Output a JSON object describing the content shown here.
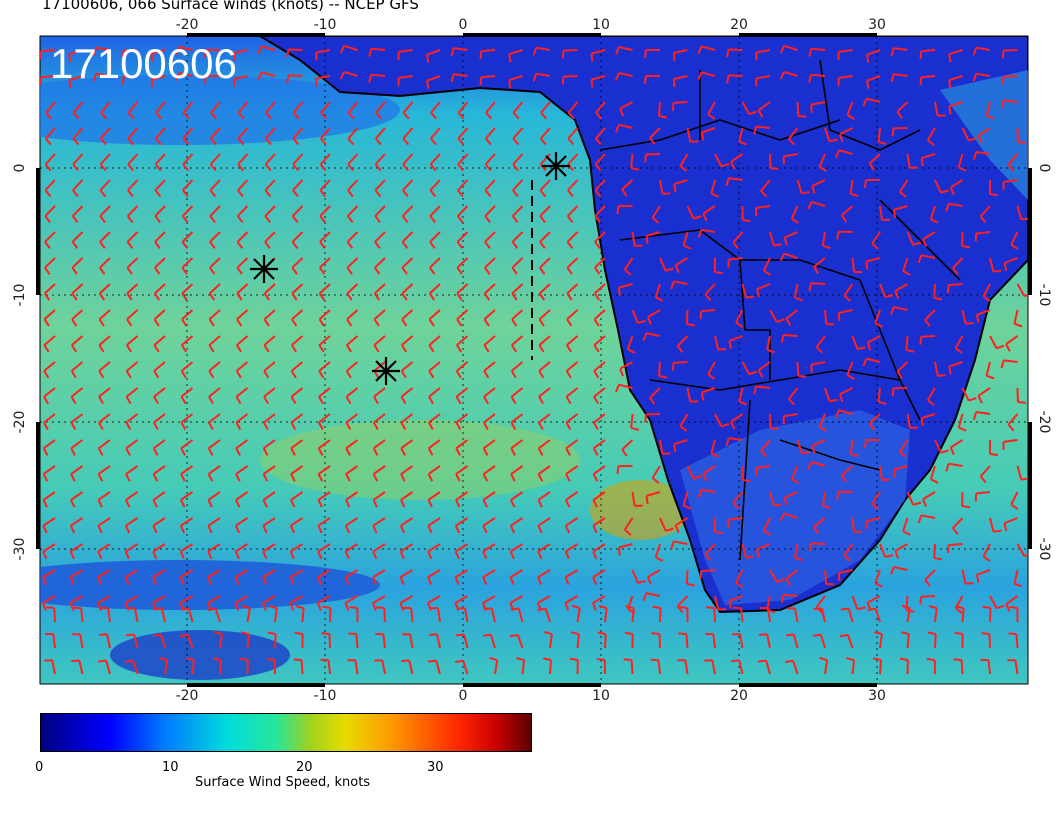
{
  "title": "17100606, 066 Surface winds (knots) -- NCEP GFS",
  "map": {
    "timestamp": "17100606",
    "lon_ticks": [
      "-20",
      "-10",
      "0",
      "10",
      "20",
      "30"
    ],
    "lat_ticks": [
      "0",
      "-10",
      "-20",
      "-30"
    ],
    "barb_color": "#ff2020",
    "land_color": "#1a2fd0",
    "ocean_color": "#3fc7c0",
    "markers": [
      "asterisk",
      "asterisk",
      "asterisk"
    ]
  },
  "colorbar": {
    "tick_labels": [
      "0",
      "10",
      "20",
      "30"
    ],
    "title": "Surface Wind Speed, knots"
  }
}
